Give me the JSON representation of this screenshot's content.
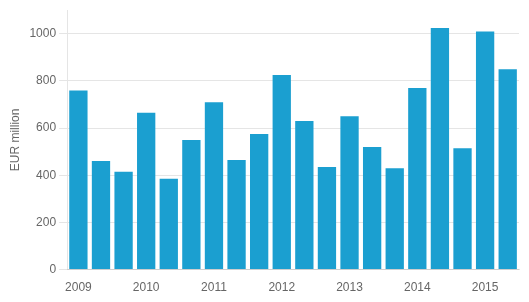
{
  "chart_data": {
    "type": "bar",
    "categories": [
      "2009",
      null,
      null,
      "2010",
      null,
      null,
      "2011",
      null,
      null,
      "2012",
      null,
      null,
      "2013",
      null,
      null,
      "2014",
      null,
      null,
      "2015",
      null
    ],
    "values": [
      760,
      460,
      415,
      665,
      385,
      550,
      710,
      465,
      575,
      825,
      630,
      435,
      650,
      520,
      430,
      770,
      1025,
      515,
      1010,
      850
    ],
    "color": "#1b9fd0",
    "ylabel": "EUR million",
    "ylim": [
      0,
      1100
    ],
    "yticks": [
      0,
      200,
      400,
      600,
      800,
      1000
    ],
    "grid": true
  }
}
